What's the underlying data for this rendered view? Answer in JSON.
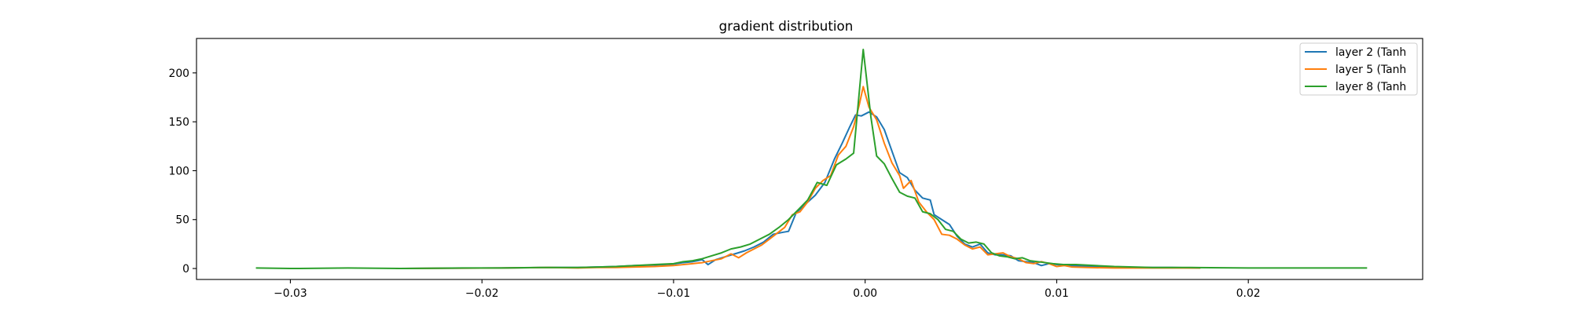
{
  "chart_data": {
    "type": "line",
    "title": "gradient distribution",
    "xlabel": "",
    "ylabel": "",
    "xlim": [
      -0.0349,
      0.0291
    ],
    "ylim": [
      -11.2,
      235.2
    ],
    "xticks": [
      -0.03,
      -0.02,
      -0.01,
      0.0,
      0.01,
      0.02
    ],
    "xtick_labels": [
      "−0.03",
      "−0.02",
      "−0.01",
      "0.00",
      "0.01",
      "0.02"
    ],
    "yticks": [
      0,
      50,
      100,
      150,
      200
    ],
    "ytick_labels": [
      "0",
      "50",
      "100",
      "150",
      "200"
    ],
    "grid": false,
    "legend_position": "top-right",
    "series": [
      {
        "name": "layer 2 (Tanh",
        "color": "#1f77b4",
        "points": [
          [
            -0.0245,
            0
          ],
          [
            -0.019,
            0.5
          ],
          [
            -0.0165,
            1
          ],
          [
            -0.015,
            1
          ],
          [
            -0.014,
            1.5
          ],
          [
            -0.013,
            2
          ],
          [
            -0.012,
            3
          ],
          [
            -0.011,
            3.5
          ],
          [
            -0.01,
            4.5
          ],
          [
            -0.0095,
            6
          ],
          [
            -0.009,
            7
          ],
          [
            -0.0085,
            9
          ],
          [
            -0.0082,
            4
          ],
          [
            -0.0078,
            9
          ],
          [
            -0.0073,
            12
          ],
          [
            -0.0068,
            15
          ],
          [
            -0.0063,
            18
          ],
          [
            -0.0058,
            22
          ],
          [
            -0.0053,
            27
          ],
          [
            -0.0048,
            35
          ],
          [
            -0.0043,
            37
          ],
          [
            -0.004,
            38
          ],
          [
            -0.0036,
            57
          ],
          [
            -0.0031,
            66
          ],
          [
            -0.0026,
            75
          ],
          [
            -0.0021,
            88
          ],
          [
            -0.0016,
            112
          ],
          [
            -0.0012,
            128
          ],
          [
            -0.0008,
            145
          ],
          [
            -0.0005,
            157
          ],
          [
            -0.0002,
            156
          ],
          [
            0.0002,
            160
          ],
          [
            0.0006,
            155
          ],
          [
            0.001,
            142
          ],
          [
            0.0014,
            120
          ],
          [
            0.0018,
            98
          ],
          [
            0.0022,
            93
          ],
          [
            0.0026,
            80
          ],
          [
            0.003,
            72
          ],
          [
            0.0034,
            70
          ],
          [
            0.0036,
            55
          ],
          [
            0.004,
            50
          ],
          [
            0.0044,
            45
          ],
          [
            0.0048,
            33
          ],
          [
            0.0052,
            25
          ],
          [
            0.0056,
            22
          ],
          [
            0.006,
            25
          ],
          [
            0.0064,
            16
          ],
          [
            0.0068,
            14
          ],
          [
            0.0072,
            14
          ],
          [
            0.0076,
            13
          ],
          [
            0.008,
            8
          ],
          [
            0.0084,
            7
          ],
          [
            0.0088,
            6
          ],
          [
            0.0092,
            3
          ],
          [
            0.0096,
            5
          ],
          [
            0.01,
            4
          ],
          [
            0.0104,
            3
          ],
          [
            0.011,
            2.5
          ],
          [
            0.012,
            2
          ],
          [
            0.013,
            1.5
          ],
          [
            0.014,
            1
          ],
          [
            0.016,
            1
          ],
          [
            0.0175,
            0.5
          ]
        ]
      },
      {
        "name": "layer 5 (Tanh",
        "color": "#ff7f0e",
        "points": [
          [
            -0.0245,
            0
          ],
          [
            -0.019,
            0.5
          ],
          [
            -0.0165,
            1
          ],
          [
            -0.015,
            0.5
          ],
          [
            -0.014,
            1
          ],
          [
            -0.013,
            1
          ],
          [
            -0.012,
            1.5
          ],
          [
            -0.011,
            2
          ],
          [
            -0.01,
            3
          ],
          [
            -0.0095,
            4
          ],
          [
            -0.009,
            5
          ],
          [
            -0.0085,
            6
          ],
          [
            -0.008,
            8
          ],
          [
            -0.0075,
            10
          ],
          [
            -0.007,
            15
          ],
          [
            -0.0066,
            11
          ],
          [
            -0.0062,
            16
          ],
          [
            -0.0058,
            20
          ],
          [
            -0.0054,
            24
          ],
          [
            -0.005,
            30
          ],
          [
            -0.0046,
            36
          ],
          [
            -0.0042,
            42
          ],
          [
            -0.0038,
            55
          ],
          [
            -0.0034,
            58
          ],
          [
            -0.003,
            68
          ],
          [
            -0.0026,
            82
          ],
          [
            -0.0022,
            90
          ],
          [
            -0.0018,
            95
          ],
          [
            -0.0014,
            116
          ],
          [
            -0.001,
            125
          ],
          [
            -0.0006,
            145
          ],
          [
            -0.0003,
            168
          ],
          [
            -0.0001,
            186
          ],
          [
            0.0002,
            165
          ],
          [
            0.0006,
            152
          ],
          [
            0.001,
            128
          ],
          [
            0.0014,
            108
          ],
          [
            0.0018,
            95
          ],
          [
            0.002,
            82
          ],
          [
            0.0024,
            90
          ],
          [
            0.0028,
            68
          ],
          [
            0.0032,
            58
          ],
          [
            0.0036,
            50
          ],
          [
            0.004,
            35
          ],
          [
            0.0044,
            34
          ],
          [
            0.0048,
            30
          ],
          [
            0.0052,
            24
          ],
          [
            0.0056,
            20
          ],
          [
            0.006,
            22
          ],
          [
            0.0064,
            14
          ],
          [
            0.0068,
            15
          ],
          [
            0.0072,
            16
          ],
          [
            0.0076,
            12
          ],
          [
            0.008,
            10
          ],
          [
            0.0084,
            6
          ],
          [
            0.0088,
            5
          ],
          [
            0.0092,
            7
          ],
          [
            0.0096,
            5
          ],
          [
            0.01,
            2
          ],
          [
            0.0104,
            3
          ],
          [
            0.0108,
            1.5
          ],
          [
            0.0116,
            1
          ],
          [
            0.013,
            0.5
          ],
          [
            0.015,
            0.5
          ],
          [
            0.0175,
            0.5
          ]
        ]
      },
      {
        "name": "layer 8 (Tanh",
        "color": "#2ca02c",
        "points": [
          [
            -0.0318,
            0.5
          ],
          [
            -0.03,
            0
          ],
          [
            -0.027,
            0.5
          ],
          [
            -0.024,
            0
          ],
          [
            -0.021,
            0.5
          ],
          [
            -0.019,
            0.5
          ],
          [
            -0.017,
            1
          ],
          [
            -0.015,
            1
          ],
          [
            -0.013,
            2
          ],
          [
            -0.012,
            3
          ],
          [
            -0.011,
            4
          ],
          [
            -0.01,
            5
          ],
          [
            -0.0095,
            7
          ],
          [
            -0.009,
            8
          ],
          [
            -0.0085,
            10
          ],
          [
            -0.008,
            13
          ],
          [
            -0.0075,
            16
          ],
          [
            -0.007,
            20
          ],
          [
            -0.0065,
            22
          ],
          [
            -0.006,
            25
          ],
          [
            -0.0055,
            30
          ],
          [
            -0.005,
            35
          ],
          [
            -0.0045,
            42
          ],
          [
            -0.004,
            50
          ],
          [
            -0.0035,
            60
          ],
          [
            -0.003,
            70
          ],
          [
            -0.0025,
            88
          ],
          [
            -0.002,
            85
          ],
          [
            -0.0015,
            106
          ],
          [
            -0.001,
            112
          ],
          [
            -0.0006,
            118
          ],
          [
            -0.0001,
            224
          ],
          [
            0.0003,
            155
          ],
          [
            0.0006,
            115
          ],
          [
            0.001,
            107
          ],
          [
            0.0014,
            92
          ],
          [
            0.0018,
            78
          ],
          [
            0.0022,
            74
          ],
          [
            0.0026,
            72
          ],
          [
            0.003,
            58
          ],
          [
            0.0034,
            56
          ],
          [
            0.0038,
            50
          ],
          [
            0.0042,
            40
          ],
          [
            0.0046,
            38
          ],
          [
            0.005,
            30
          ],
          [
            0.0054,
            26
          ],
          [
            0.0058,
            27
          ],
          [
            0.0062,
            25
          ],
          [
            0.0066,
            16
          ],
          [
            0.007,
            13
          ],
          [
            0.0074,
            12
          ],
          [
            0.0078,
            10
          ],
          [
            0.0082,
            11
          ],
          [
            0.0086,
            8
          ],
          [
            0.009,
            7
          ],
          [
            0.0094,
            6
          ],
          [
            0.0098,
            5
          ],
          [
            0.0104,
            4
          ],
          [
            0.011,
            4
          ],
          [
            0.012,
            3
          ],
          [
            0.013,
            2
          ],
          [
            0.015,
            1
          ],
          [
            0.017,
            1
          ],
          [
            0.02,
            0.5
          ],
          [
            0.023,
            0.5
          ],
          [
            0.0262,
            0.5
          ]
        ]
      }
    ]
  }
}
